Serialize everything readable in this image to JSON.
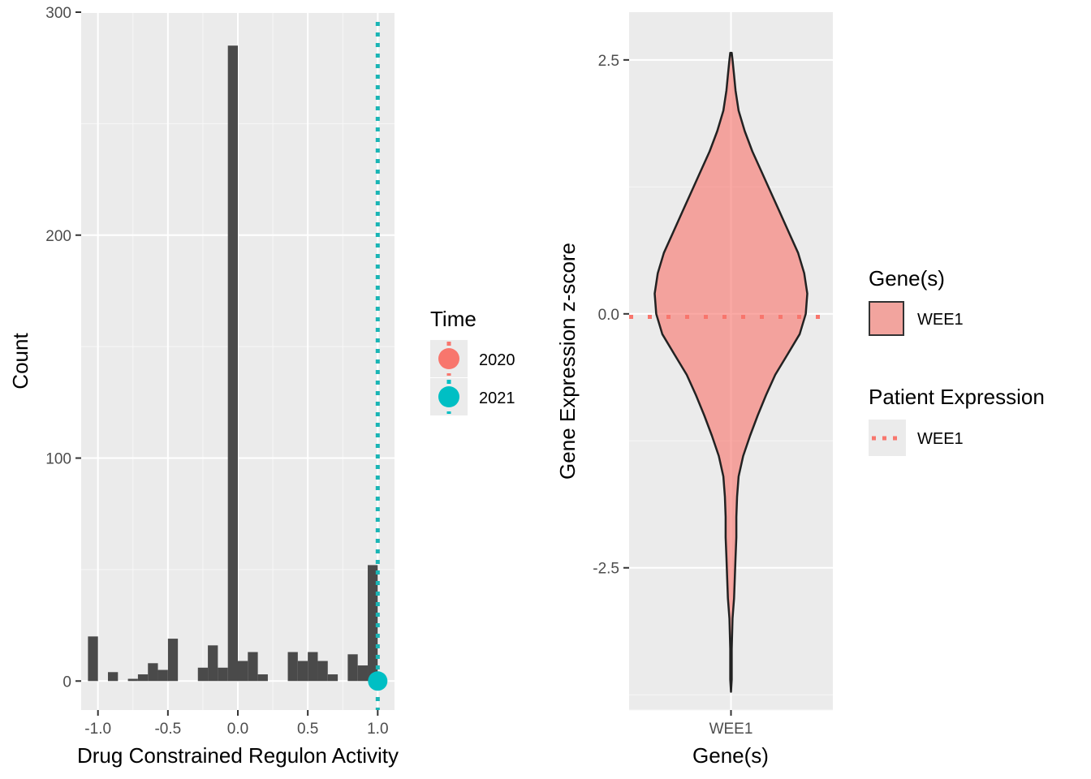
{
  "chart_data": [
    {
      "type": "bar",
      "subtype": "histogram",
      "xlabel": "Drug Constrained Regulon Activity",
      "ylabel": "Count",
      "xlim": [
        -1.12,
        1.12
      ],
      "ylim": [
        -13,
        300
      ],
      "x_ticks": [
        -1.0,
        -0.5,
        0.0,
        0.5,
        1.0
      ],
      "x_tick_labels": [
        "-1.0",
        "-0.5",
        "0.0",
        "0.5",
        "1.0"
      ],
      "y_ticks": [
        0,
        100,
        200,
        300
      ],
      "y_tick_labels": [
        "0",
        "100",
        "200",
        "300"
      ],
      "bin_width": 0.0714,
      "bins": [
        {
          "x": -1.0357,
          "count": 20
        },
        {
          "x": -0.9643,
          "count": 0
        },
        {
          "x": -0.8929,
          "count": 4
        },
        {
          "x": -0.8214,
          "count": 0
        },
        {
          "x": -0.75,
          "count": 1
        },
        {
          "x": -0.6786,
          "count": 3
        },
        {
          "x": -0.6071,
          "count": 8
        },
        {
          "x": -0.5357,
          "count": 5
        },
        {
          "x": -0.4643,
          "count": 19
        },
        {
          "x": -0.3929,
          "count": 0
        },
        {
          "x": -0.3214,
          "count": 0
        },
        {
          "x": -0.25,
          "count": 6
        },
        {
          "x": -0.1786,
          "count": 16
        },
        {
          "x": -0.1071,
          "count": 6
        },
        {
          "x": -0.0357,
          "count": 285
        },
        {
          "x": 0.0357,
          "count": 9
        },
        {
          "x": 0.1071,
          "count": 13
        },
        {
          "x": 0.1786,
          "count": 3
        },
        {
          "x": 0.25,
          "count": 0
        },
        {
          "x": 0.3214,
          "count": 0
        },
        {
          "x": 0.3929,
          "count": 13
        },
        {
          "x": 0.4643,
          "count": 9
        },
        {
          "x": 0.5357,
          "count": 13
        },
        {
          "x": 0.6071,
          "count": 9
        },
        {
          "x": 0.6786,
          "count": 3
        },
        {
          "x": 0.75,
          "count": 0
        },
        {
          "x": 0.8214,
          "count": 12
        },
        {
          "x": 0.8929,
          "count": 7
        },
        {
          "x": 0.9643,
          "count": 52
        }
      ],
      "vline": {
        "x": 1.0,
        "color": "#1ab5b5",
        "style": "dotted"
      },
      "points": [
        {
          "x": 1.0,
          "y": 0,
          "series": "2021",
          "color": "#00bfc4"
        }
      ],
      "legend": {
        "title": "Time",
        "placement": "right",
        "entries": [
          {
            "label": "2020",
            "color": "#f8766d"
          },
          {
            "label": "2021",
            "color": "#00bfc4"
          }
        ]
      },
      "grid": true
    },
    {
      "type": "violin",
      "xlabel": "Gene(s)",
      "ylabel": "Gene Expression z-score",
      "categories": [
        "WEE1"
      ],
      "ylim": [
        -3.9,
        2.97
      ],
      "y_ticks": [
        -2.5,
        0.0,
        2.5
      ],
      "y_tick_labels": [
        "-2.5",
        "0.0",
        "2.5"
      ],
      "violin": {
        "category": "WEE1",
        "fill": "#f8766d",
        "profile": [
          [
            2.57,
            0.01
          ],
          [
            2.5,
            0.02
          ],
          [
            2.35,
            0.04
          ],
          [
            2.2,
            0.06
          ],
          [
            2.0,
            0.1
          ],
          [
            1.8,
            0.18
          ],
          [
            1.6,
            0.28
          ],
          [
            1.4,
            0.4
          ],
          [
            1.2,
            0.52
          ],
          [
            1.0,
            0.64
          ],
          [
            0.8,
            0.76
          ],
          [
            0.6,
            0.88
          ],
          [
            0.4,
            0.96
          ],
          [
            0.2,
            1.0
          ],
          [
            0.0,
            0.98
          ],
          [
            -0.2,
            0.9
          ],
          [
            -0.4,
            0.74
          ],
          [
            -0.6,
            0.58
          ],
          [
            -0.8,
            0.46
          ],
          [
            -1.0,
            0.35
          ],
          [
            -1.2,
            0.25
          ],
          [
            -1.4,
            0.16
          ],
          [
            -1.6,
            0.1
          ],
          [
            -1.8,
            0.08
          ],
          [
            -2.0,
            0.07
          ],
          [
            -2.2,
            0.07
          ],
          [
            -2.4,
            0.06
          ],
          [
            -2.6,
            0.05
          ],
          [
            -2.8,
            0.04
          ],
          [
            -3.0,
            0.02
          ],
          [
            -3.3,
            0.01
          ],
          [
            -3.6,
            0.01
          ],
          [
            -3.72,
            0.0
          ]
        ]
      },
      "hline": {
        "y": -0.03,
        "color": "#f8766d",
        "style": "dotted"
      },
      "legends": [
        {
          "title": "Gene(s)",
          "entries": [
            {
              "label": "WEE1",
              "fill": "#f8766d"
            }
          ]
        },
        {
          "title": "Patient Expression",
          "entries": [
            {
              "label": "WEE1",
              "color": "#f8766d",
              "style": "dotted"
            }
          ]
        }
      ],
      "grid": true
    }
  ]
}
